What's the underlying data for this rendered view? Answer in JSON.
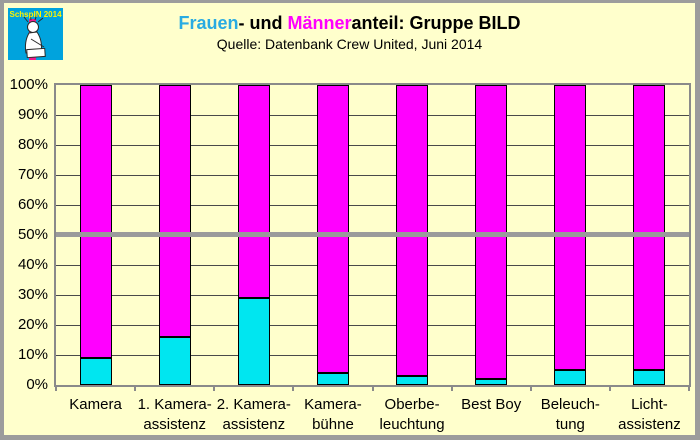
{
  "page": {
    "background": "#FFFFCC",
    "frame_color": "#9c9c9c"
  },
  "logo": {
    "text": "SchspIN 2014",
    "bg_color": "#00A3DD",
    "text_color": "#FFF200",
    "stripe_color": "#EC1C8D"
  },
  "header": {
    "title_parts": [
      {
        "text": "Frauen",
        "color": "#29ABE2"
      },
      {
        "text": "- und ",
        "color": "#000000"
      },
      {
        "text": "Männer",
        "color": "#FF00FF"
      },
      {
        "text": "anteil: Gruppe BILD",
        "color": "#000000"
      }
    ],
    "subtitle": "Quelle: Datenbank Crew United, Juni 2014"
  },
  "chart_data": {
    "type": "bar",
    "subtype": "stacked-100-percent",
    "title": "Frauen- und Männeranteil: Gruppe BILD",
    "source_note": "Quelle: Datenbank Crew United, Juni 2014",
    "categories": [
      [
        "Kamera"
      ],
      [
        "1. Kamera-",
        "assistenz"
      ],
      [
        "2. Kamera-",
        "assistenz"
      ],
      [
        "Kamera-",
        "bühne"
      ],
      [
        "Oberbe-",
        "leuchtung"
      ],
      [
        "Best Boy"
      ],
      [
        "Beleuch-",
        "tung"
      ],
      [
        "Licht-",
        "assistenz"
      ]
    ],
    "series": [
      {
        "name": "Frauen",
        "color": "#00E6F0",
        "values": [
          9,
          16,
          29,
          4,
          3,
          2,
          5,
          5
        ]
      },
      {
        "name": "Männer",
        "color": "#FF00FF",
        "values": [
          91,
          84,
          71,
          96,
          97,
          98,
          95,
          95
        ]
      }
    ],
    "ylim": [
      0,
      100
    ],
    "y_tick_labels": [
      "100%",
      "90%",
      "80%",
      "70%",
      "60%",
      "50%",
      "40%",
      "30%",
      "20%",
      "10%",
      "0%"
    ],
    "grid": "horizontal every 10%",
    "gridline_color": "#4a4a4a",
    "plot_background": "#FFFFCC",
    "legend_position": "none",
    "reference_line": {
      "value": 50,
      "color": "#9b9b9b"
    }
  }
}
